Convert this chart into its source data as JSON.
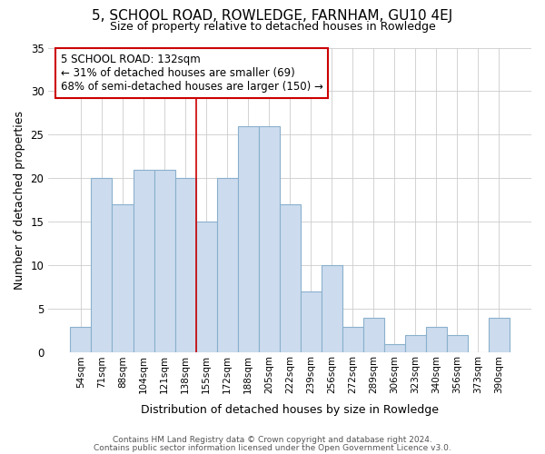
{
  "title": "5, SCHOOL ROAD, ROWLEDGE, FARNHAM, GU10 4EJ",
  "subtitle": "Size of property relative to detached houses in Rowledge",
  "xlabel": "Distribution of detached houses by size in Rowledge",
  "ylabel": "Number of detached properties",
  "categories": [
    "54sqm",
    "71sqm",
    "88sqm",
    "104sqm",
    "121sqm",
    "138sqm",
    "155sqm",
    "172sqm",
    "188sqm",
    "205sqm",
    "222sqm",
    "239sqm",
    "256sqm",
    "272sqm",
    "289sqm",
    "306sqm",
    "323sqm",
    "340sqm",
    "356sqm",
    "373sqm",
    "390sqm"
  ],
  "values": [
    3,
    20,
    17,
    21,
    21,
    20,
    15,
    20,
    26,
    26,
    17,
    7,
    10,
    3,
    4,
    1,
    2,
    3,
    2,
    0,
    4
  ],
  "bar_color": "#ccdcee",
  "bar_edge_color": "#8ab0cc",
  "bar_linewidth": 0.8,
  "grid_color": "#cccccc",
  "background_color": "#ffffff",
  "red_line_x": 5.5,
  "annotation_text": "5 SCHOOL ROAD: 132sqm\n← 31% of detached houses are smaller (69)\n68% of semi-detached houses are larger (150) →",
  "annotation_box_color": "white",
  "annotation_box_edge": "#cc0000",
  "ylim": [
    0,
    35
  ],
  "yticks": [
    0,
    5,
    10,
    15,
    20,
    25,
    30,
    35
  ],
  "footer1": "Contains HM Land Registry data © Crown copyright and database right 2024.",
  "footer2": "Contains public sector information licensed under the Open Government Licence v3.0."
}
